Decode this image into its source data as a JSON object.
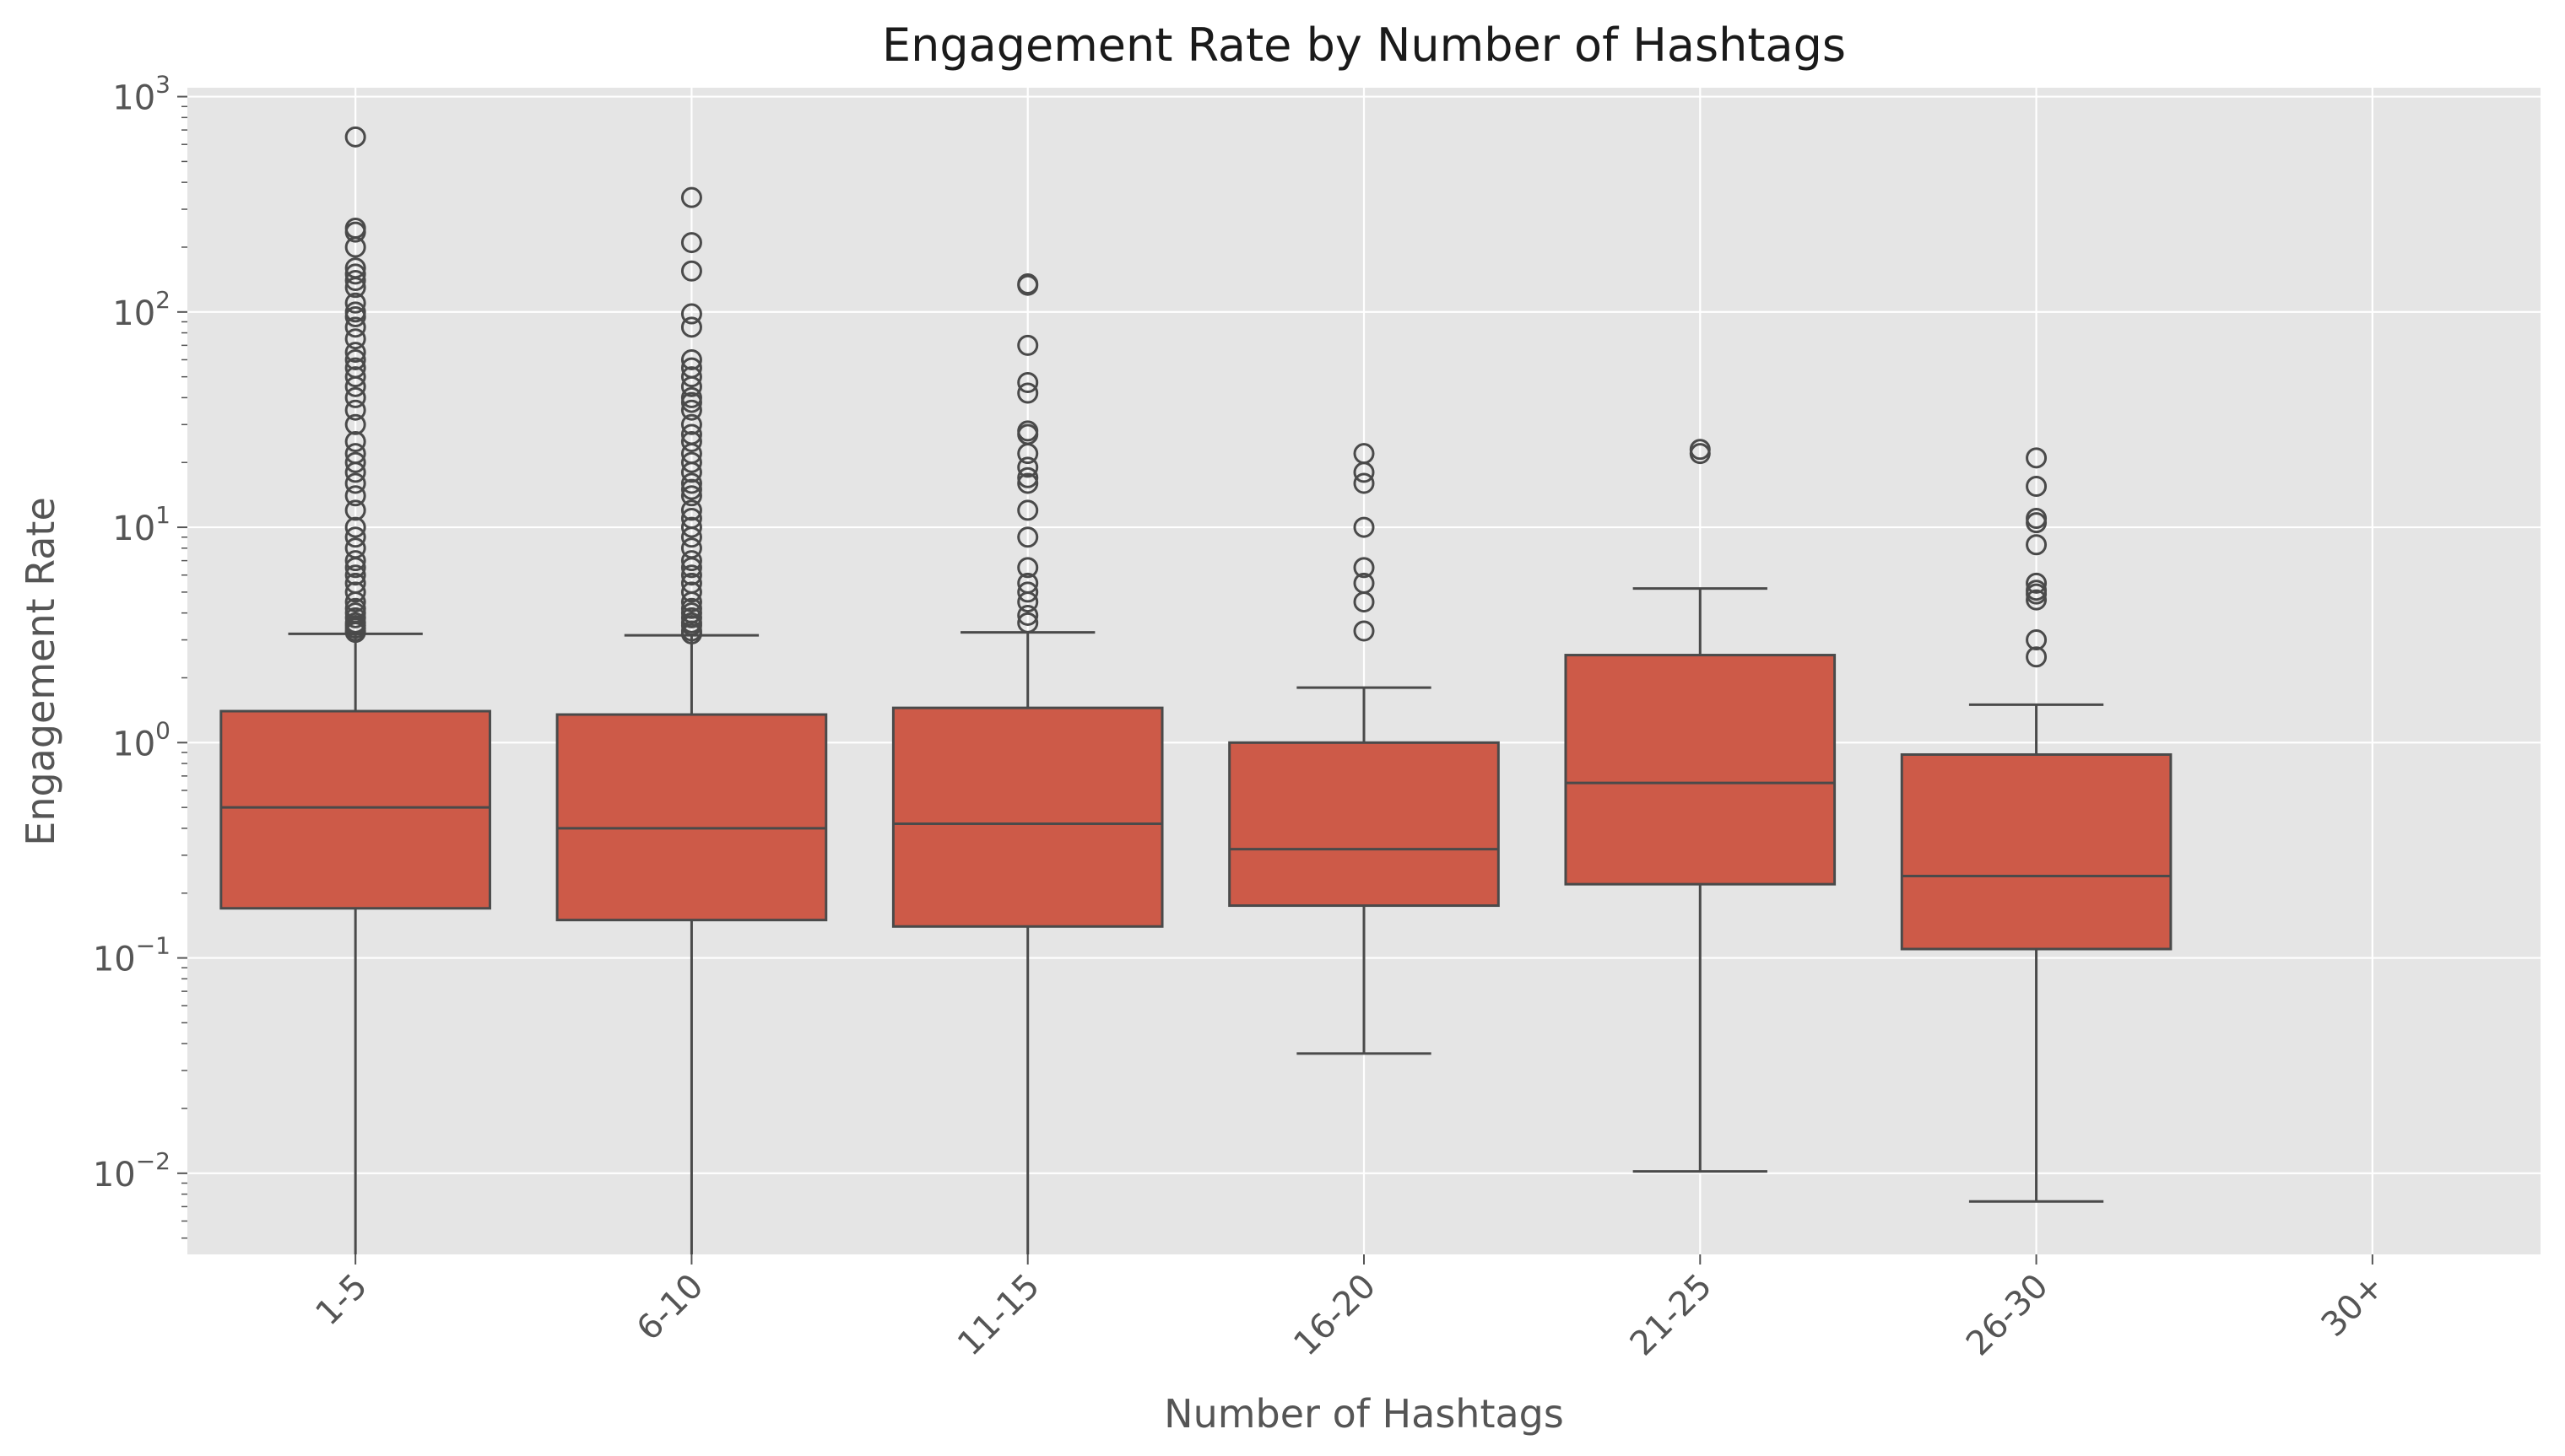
{
  "chart_data": {
    "type": "box",
    "title": "Engagement Rate by Number of Hashtags",
    "xlabel": "Number of Hashtags",
    "ylabel": "Engagement Rate",
    "yscale": "log",
    "ylim": [
      0.0042,
      1100
    ],
    "y_ticks": [
      {
        "value": 0.01,
        "base": "10",
        "exp": "−2"
      },
      {
        "value": 0.1,
        "base": "10",
        "exp": "−1"
      },
      {
        "value": 1,
        "base": "10",
        "exp": "0"
      },
      {
        "value": 10,
        "base": "10",
        "exp": "1"
      },
      {
        "value": 100,
        "base": "10",
        "exp": "2"
      },
      {
        "value": 1000,
        "base": "10",
        "exp": "3"
      }
    ],
    "grid": true,
    "box_color": "#cd5a48",
    "line_color": "#4a4a4a",
    "background_color": "#e5e5e5",
    "categories": [
      "1-5",
      "6-10",
      "11-15",
      "16-20",
      "21-25",
      "26-30",
      "30+"
    ],
    "boxes": [
      {
        "category": "1-5",
        "whislo": 0.004,
        "q1": 0.17,
        "median": 0.5,
        "q3": 1.4,
        "whishi": 3.2,
        "fliers": [
          650,
          245,
          235,
          200,
          160,
          150,
          140,
          130,
          110,
          100,
          95,
          85,
          75,
          65,
          60,
          55,
          50,
          45,
          40,
          35,
          30,
          25,
          22,
          20,
          18,
          16,
          14,
          12,
          10,
          9,
          8,
          7,
          6.5,
          6,
          5.5,
          5,
          4.5,
          4.2,
          4,
          3.8,
          3.6,
          3.5,
          3.4,
          3.3,
          3.25
        ]
      },
      {
        "category": "6-10",
        "whislo": 0.004,
        "q1": 0.15,
        "median": 0.4,
        "q3": 1.35,
        "whishi": 3.15,
        "fliers": [
          340,
          210,
          155,
          98,
          85,
          60,
          55,
          50,
          45,
          40,
          38,
          35,
          30,
          27,
          25,
          22,
          20,
          18,
          16,
          15,
          14,
          12,
          11,
          10,
          9,
          8,
          7,
          6.5,
          6,
          5.5,
          5,
          4.5,
          4.2,
          4,
          3.8,
          3.6,
          3.5,
          3.3,
          3.2
        ]
      },
      {
        "category": "11-15",
        "whislo": 0.004,
        "q1": 0.14,
        "median": 0.42,
        "q3": 1.45,
        "whishi": 3.25,
        "fliers": [
          135,
          133,
          70,
          47,
          42,
          28,
          27,
          22,
          19,
          17,
          16,
          12,
          9,
          6.5,
          5.5,
          5,
          4.5,
          3.9,
          3.6
        ]
      },
      {
        "category": "16-20",
        "whislo": 0.036,
        "q1": 0.175,
        "median": 0.32,
        "q3": 1.0,
        "whishi": 1.8,
        "fliers": [
          22,
          18,
          16,
          10,
          6.5,
          5.5,
          4.5,
          3.3
        ]
      },
      {
        "category": "21-25",
        "whislo": 0.0102,
        "q1": 0.22,
        "median": 0.65,
        "q3": 2.55,
        "whishi": 5.2,
        "fliers": [
          23,
          22
        ]
      },
      {
        "category": "26-30",
        "whislo": 0.0074,
        "q1": 0.11,
        "median": 0.24,
        "q3": 0.88,
        "whishi": 1.5,
        "fliers": [
          21,
          15.5,
          11,
          10.5,
          8.3,
          5.5,
          5.1,
          4.9,
          4.6,
          3,
          2.5
        ]
      },
      {
        "category": "30+"
      }
    ]
  }
}
